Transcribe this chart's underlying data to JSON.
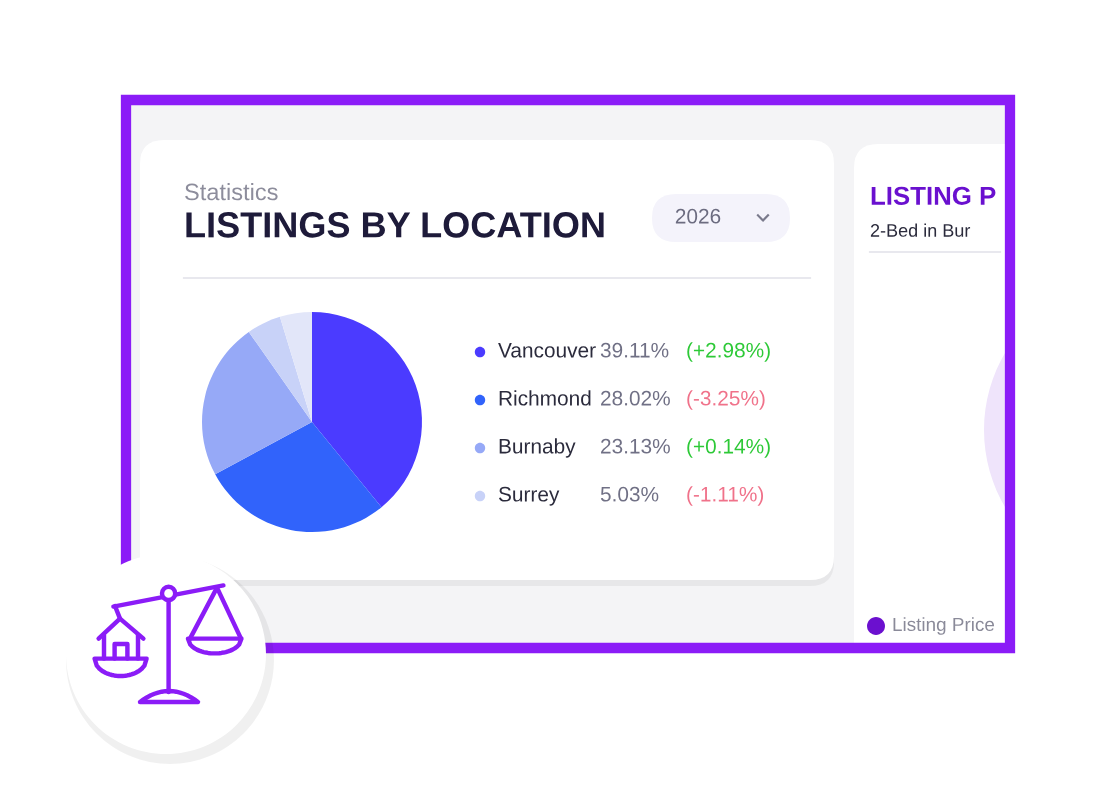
{
  "chart_data": [
    {
      "type": "pie",
      "subtitle": "Statistics",
      "title": "LISTINGS BY LOCATION",
      "categories": [
        "Vancouver",
        "Richmond",
        "Burnaby",
        "Surrey",
        null
      ],
      "values": [
        39.11,
        28.02,
        23.13,
        5.03,
        4.71
      ],
      "colors": [
        "#4b3bff",
        "#3163fb",
        "#96a9f7",
        "#c8d2f8",
        "#e2e6f9"
      ],
      "value_labels": [
        "39.11%",
        "28.02%",
        "23.13%",
        "5.03%",
        null
      ],
      "annotations": [
        "2026",
        "(+2.98%)",
        "(-3.25%)",
        "(+0.14%)",
        "(-1.11%)"
      ],
      "legend": "right"
    },
    {
      "type": "other",
      "title": "LISTING P",
      "subtitle": "2-Bed in Bur",
      "series": [
        {
          "name": "Listing Price",
          "color": "#6b10cf"
        }
      ],
      "legend": "bottom left"
    }
  ]
}
